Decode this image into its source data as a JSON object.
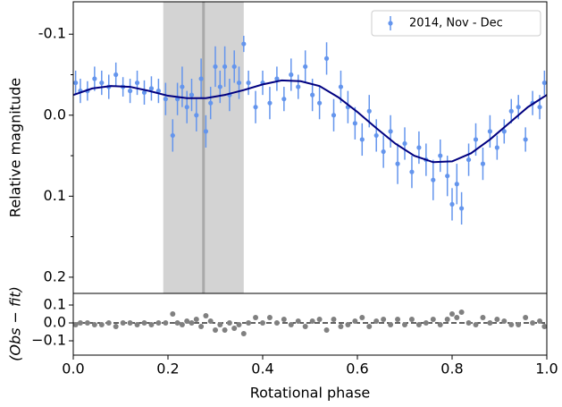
{
  "chart_data": [
    {
      "type": "scatter",
      "ylabel": "Relative magnitude",
      "ylim": [
        0.22,
        -0.14
      ],
      "yticks": [
        -0.1,
        {
          "value": 0,
          "label": "0.0"
        },
        0.1,
        0.2
      ],
      "yminorticks": [
        -0.05,
        0.05,
        0.15
      ],
      "xlim": [
        0,
        1
      ],
      "legend": "upper right",
      "span": [
        0.19,
        0.36
      ],
      "span_color": "#d3d3d3",
      "vline": 0.275,
      "vline_color": "#a9a9a9",
      "x": [
        0.005,
        0.015,
        0.03,
        0.045,
        0.06,
        0.075,
        0.09,
        0.105,
        0.12,
        0.135,
        0.15,
        0.165,
        0.18,
        0.195,
        0.21,
        0.22,
        0.23,
        0.24,
        0.25,
        0.26,
        0.27,
        0.28,
        0.29,
        0.3,
        0.31,
        0.32,
        0.33,
        0.34,
        0.35,
        0.36,
        0.37,
        0.385,
        0.4,
        0.415,
        0.43,
        0.445,
        0.46,
        0.475,
        0.49,
        0.505,
        0.52,
        0.535,
        0.55,
        0.565,
        0.58,
        0.595,
        0.61,
        0.625,
        0.64,
        0.655,
        0.67,
        0.685,
        0.7,
        0.715,
        0.73,
        0.745,
        0.76,
        0.775,
        0.79,
        0.8,
        0.81,
        0.82,
        0.835,
        0.85,
        0.865,
        0.88,
        0.895,
        0.91,
        0.925,
        0.94,
        0.955,
        0.97,
        0.985,
        0.995
      ],
      "series": [
        {
          "name": "2014, Nov - Dec",
          "color": "#6495ed",
          "values": [
            -0.04,
            -0.03,
            -0.03,
            -0.045,
            -0.04,
            -0.035,
            -0.05,
            -0.035,
            -0.03,
            -0.04,
            -0.028,
            -0.033,
            -0.03,
            -0.02,
            0.025,
            -0.02,
            -0.035,
            -0.01,
            -0.025,
            0.0,
            -0.045,
            0.02,
            -0.015,
            -0.06,
            -0.035,
            -0.06,
            -0.025,
            -0.06,
            -0.04,
            -0.088,
            -0.04,
            -0.01,
            -0.04,
            -0.015,
            -0.045,
            -0.02,
            -0.05,
            -0.035,
            -0.06,
            -0.025,
            -0.015,
            -0.07,
            0.0,
            -0.035,
            -0.01,
            0.01,
            0.03,
            -0.005,
            0.025,
            0.045,
            0.02,
            0.06,
            0.035,
            0.07,
            0.04,
            0.055,
            0.08,
            0.05,
            0.075,
            0.11,
            0.085,
            0.115,
            0.055,
            0.03,
            0.06,
            0.02,
            0.04,
            0.02,
            -0.005,
            -0.01,
            0.03,
            -0.015,
            -0.01,
            -0.04
          ],
          "errors": [
            0.015,
            0.015,
            0.012,
            0.015,
            0.015,
            0.015,
            0.015,
            0.012,
            0.015,
            0.015,
            0.015,
            0.015,
            0.015,
            0.02,
            0.02,
            0.02,
            0.025,
            0.02,
            0.02,
            0.02,
            0.025,
            0.02,
            0.02,
            0.025,
            0.02,
            0.025,
            0.02,
            0.02,
            0.02,
            0.01,
            0.015,
            0.02,
            0.015,
            0.02,
            0.015,
            0.015,
            0.02,
            0.015,
            0.02,
            0.02,
            0.02,
            0.02,
            0.02,
            0.02,
            0.02,
            0.02,
            0.02,
            0.02,
            0.02,
            0.02,
            0.02,
            0.025,
            0.02,
            0.02,
            0.02,
            0.02,
            0.025,
            0.02,
            0.025,
            0.02,
            0.025,
            0.02,
            0.02,
            0.02,
            0.02,
            0.02,
            0.015,
            0.015,
            0.015,
            0.015,
            0.015,
            0.015,
            0.015,
            0.015
          ]
        }
      ],
      "fit": {
        "color": "#000080",
        "x": [
          0,
          0.04,
          0.08,
          0.12,
          0.16,
          0.2,
          0.24,
          0.28,
          0.32,
          0.36,
          0.4,
          0.44,
          0.48,
          0.52,
          0.56,
          0.6,
          0.64,
          0.68,
          0.72,
          0.76,
          0.8,
          0.84,
          0.88,
          0.92,
          0.96,
          1.0
        ],
        "values": [
          -0.025,
          -0.033,
          -0.036,
          -0.035,
          -0.03,
          -0.024,
          -0.021,
          -0.021,
          -0.025,
          -0.031,
          -0.038,
          -0.043,
          -0.042,
          -0.036,
          -0.022,
          -0.004,
          0.016,
          0.035,
          0.05,
          0.058,
          0.057,
          0.047,
          0.03,
          0.01,
          -0.01,
          -0.025
        ]
      }
    },
    {
      "type": "scatter",
      "ylabel": "(Obs − fit)",
      "xlabel": "Rotational phase",
      "color": "#808080",
      "ylim": [
        -0.18,
        0.165
      ],
      "yticks": [
        {
          "value": 0.1,
          "label": "0.1"
        },
        {
          "value": 0,
          "label": "0.0"
        },
        {
          "value": -0.1,
          "label": "−0.1"
        }
      ],
      "xlim": [
        0,
        1
      ],
      "xticks": [
        {
          "value": 0,
          "label": "0.0"
        },
        0.2,
        0.4,
        0.6,
        0.8,
        {
          "value": 1,
          "label": "1.0"
        }
      ],
      "zero_line": 0,
      "values": [
        -0.01,
        0.0,
        0.0,
        -0.01,
        -0.01,
        0.0,
        -0.02,
        0.0,
        0.0,
        -0.01,
        0.0,
        -0.01,
        0.0,
        0.0,
        0.05,
        0.0,
        -0.01,
        0.01,
        0.0,
        0.02,
        -0.02,
        0.04,
        0.01,
        -0.04,
        -0.01,
        -0.04,
        0.0,
        -0.03,
        -0.01,
        -0.06,
        0.0,
        0.03,
        0.0,
        0.03,
        0.0,
        0.02,
        -0.01,
        0.01,
        -0.02,
        0.01,
        0.02,
        -0.04,
        0.02,
        -0.02,
        -0.01,
        0.01,
        0.03,
        -0.02,
        0.01,
        0.02,
        -0.01,
        0.02,
        -0.01,
        0.02,
        -0.01,
        0.0,
        0.02,
        -0.01,
        0.02,
        0.05,
        0.03,
        0.06,
        0.0,
        -0.01,
        0.03,
        0.0,
        0.02,
        0.01,
        -0.01,
        -0.01,
        0.03,
        0.0,
        0.01,
        -0.02
      ]
    }
  ]
}
